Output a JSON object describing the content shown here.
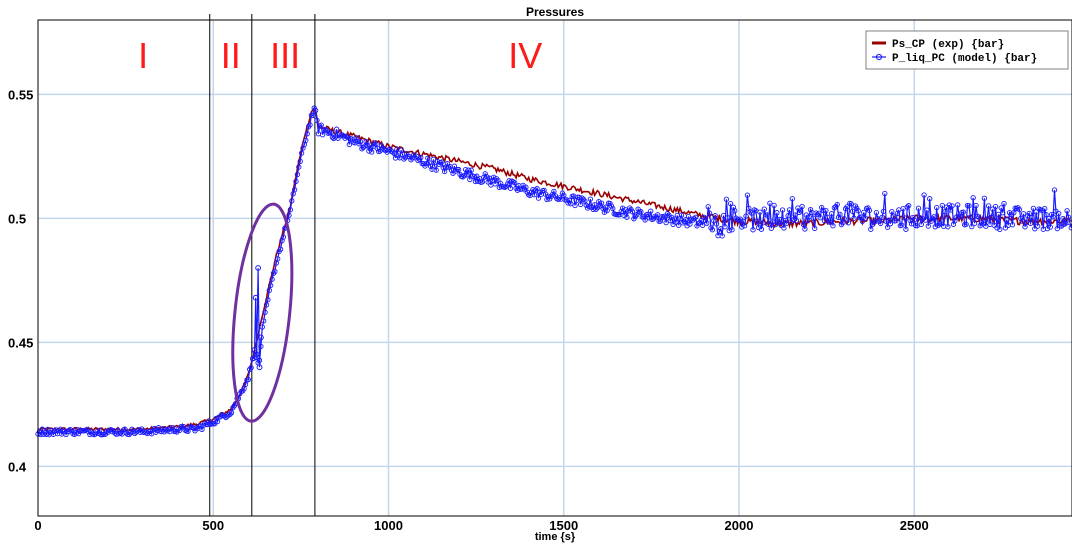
{
  "chart_data": {
    "type": "line",
    "title": "Pressures",
    "xlabel": "time {s}",
    "ylabel": "",
    "xlim": [
      0,
      2950
    ],
    "ylim": [
      0.38,
      0.58
    ],
    "x_ticks": [
      0,
      500,
      1000,
      1500,
      2000,
      2500
    ],
    "y_ticks": [
      0.4,
      0.45,
      0.5,
      0.55
    ],
    "x_tick_labels": [
      "0",
      "500",
      "1000",
      "1500",
      "2000",
      "2500"
    ],
    "y_tick_labels": [
      "0.4",
      "0.45",
      "0.5",
      "0.55"
    ],
    "grid": true,
    "legend_position": "top-right",
    "vertical_markers": [
      490,
      610,
      790
    ],
    "regions": [
      {
        "label": "I",
        "x": 300
      },
      {
        "label": "II",
        "x": 550
      },
      {
        "label": "III",
        "x": 705
      },
      {
        "label": "IV",
        "x": 1390
      }
    ],
    "annotation": {
      "type": "ellipse",
      "center_x": 640,
      "center_y": 0.462,
      "radius_x": 78,
      "radius_y": 0.044,
      "color": "#7030a0"
    },
    "series": [
      {
        "name": "Ps_CP      (exp) {bar}",
        "color": "#990000",
        "marker": "none",
        "x": [
          0,
          100,
          200,
          300,
          400,
          450,
          500,
          550,
          580,
          600,
          620,
          640,
          660,
          680,
          700,
          720,
          740,
          760,
          780,
          790,
          800,
          850,
          900,
          1000,
          1100,
          1200,
          1300,
          1400,
          1500,
          1600,
          1700,
          1800,
          1900,
          2000,
          2100,
          2200,
          2300,
          2400,
          2500,
          2600,
          2700,
          2800,
          2950
        ],
        "y": [
          0.415,
          0.415,
          0.415,
          0.415,
          0.416,
          0.417,
          0.419,
          0.423,
          0.43,
          0.437,
          0.448,
          0.461,
          0.473,
          0.485,
          0.495,
          0.505,
          0.52,
          0.533,
          0.543,
          0.545,
          0.537,
          0.535,
          0.533,
          0.529,
          0.526,
          0.523,
          0.52,
          0.516,
          0.513,
          0.51,
          0.507,
          0.504,
          0.501,
          0.499,
          0.498,
          0.498,
          0.499,
          0.499,
          0.5,
          0.5,
          0.5,
          0.499,
          0.499
        ]
      },
      {
        "name": "P_liq_PC  (model) {bar}",
        "color": "#1a1aff",
        "marker": "circle",
        "x": [
          0,
          100,
          200,
          300,
          400,
          450,
          500,
          550,
          580,
          600,
          620,
          630,
          640,
          660,
          680,
          700,
          720,
          740,
          760,
          780,
          790,
          800,
          850,
          900,
          1000,
          1100,
          1200,
          1300,
          1400,
          1500,
          1600,
          1700,
          1800,
          1900,
          2000,
          2100,
          2200,
          2300,
          2400,
          2500,
          2600,
          2700,
          2800,
          2950
        ],
        "y": [
          0.414,
          0.414,
          0.414,
          0.414,
          0.415,
          0.415,
          0.418,
          0.422,
          0.43,
          0.436,
          0.447,
          0.44,
          0.455,
          0.47,
          0.482,
          0.493,
          0.503,
          0.518,
          0.53,
          0.541,
          0.544,
          0.536,
          0.534,
          0.531,
          0.527,
          0.523,
          0.519,
          0.515,
          0.511,
          0.508,
          0.505,
          0.502,
          0.5,
          0.498,
          0.5,
          0.499,
          0.5,
          0.502,
          0.5,
          0.501,
          0.501,
          0.501,
          0.5,
          0.5
        ]
      }
    ]
  }
}
